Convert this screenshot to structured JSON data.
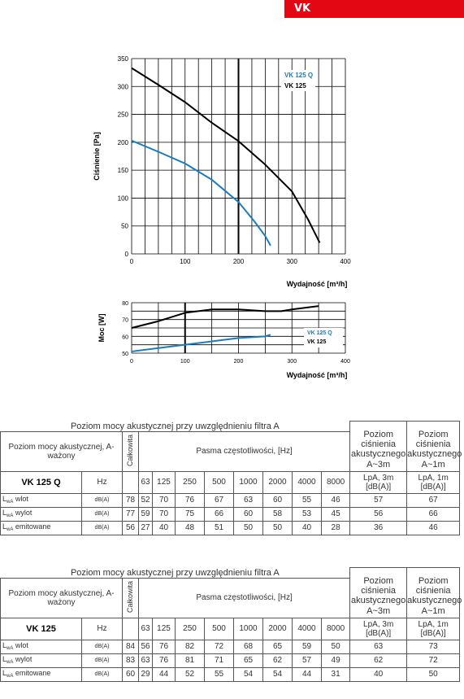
{
  "badge": "VK",
  "chart_data": [
    {
      "type": "line",
      "ylabel": "Ciśnienie [Pa]",
      "xlabel": "Wydajność [m³/h]",
      "xlim": [
        0,
        400
      ],
      "ylim": [
        0,
        350
      ],
      "xticks": [
        "0",
        "100",
        "200",
        "300",
        "400"
      ],
      "yticks": [
        "0",
        "50",
        "100",
        "150",
        "200",
        "250",
        "300",
        "350"
      ],
      "grid": true,
      "legend_position": "top-right",
      "series": [
        {
          "name": "VK 125 Q",
          "color": "#1a7cc0",
          "x": [
            0,
            50,
            100,
            150,
            200,
            230,
            250,
            260
          ],
          "y": [
            203,
            183,
            162,
            133,
            93,
            58,
            32,
            15
          ]
        },
        {
          "name": "VK 125",
          "color": "#000000",
          "x": [
            0,
            50,
            100,
            150,
            200,
            250,
            300,
            330,
            352
          ],
          "y": [
            333,
            303,
            272,
            235,
            202,
            160,
            112,
            62,
            20
          ]
        }
      ]
    },
    {
      "type": "line",
      "ylabel": "Moc [W]",
      "xlabel": "Wydajność [m³/h]",
      "xlim": [
        0,
        400
      ],
      "ylim": [
        50,
        80
      ],
      "xticks": [
        "0",
        "100",
        "200",
        "300",
        "400"
      ],
      "yticks": [
        "50",
        "60",
        "70",
        "80"
      ],
      "grid": true,
      "legend_position": "bottom-right",
      "series": [
        {
          "name": "VK 125 Q",
          "color": "#1a7cc0",
          "x": [
            0,
            50,
            100,
            150,
            200,
            250,
            260
          ],
          "y": [
            51,
            53,
            55,
            57,
            59,
            60,
            61
          ]
        },
        {
          "name": "VK 125",
          "color": "#000000",
          "x": [
            0,
            50,
            100,
            150,
            200,
            250,
            280,
            300,
            350
          ],
          "y": [
            65,
            69,
            74,
            76,
            76,
            75,
            75,
            76,
            78
          ]
        }
      ]
    }
  ],
  "freqs": [
    "63",
    "125",
    "250",
    "500",
    "1000",
    "2000",
    "4000",
    "8000"
  ],
  "tables": [
    {
      "caption": "Poziom mocy akustycznej przy uwzględnieniu filtra A",
      "label": "Poziom mocy akustycznej, A-ważony",
      "total": "Całkowita",
      "band": "Pasma częstotliwości, [Hz]",
      "hdr1": "Poziom ciśnienia akustycznego A~3m",
      "hdr2": "Poziom ciśnienia akustycznego A~1m",
      "model": "VK 125 Q",
      "hz": "Hz",
      "unit1": "LpA, 3m [dB(A)]",
      "unit2": "LpA, 1m [dB(A)]",
      "rows": [
        {
          "main": "L",
          "sub": "wA",
          "rest": " wlot",
          "unit": "dB(A)",
          "vals": [
            "78",
            "52",
            "70",
            "76",
            "67",
            "63",
            "60",
            "55",
            "46",
            "57",
            "67"
          ]
        },
        {
          "main": "L",
          "sub": "wA",
          "rest": " wylot",
          "unit": "dB(A)",
          "vals": [
            "77",
            "59",
            "70",
            "75",
            "66",
            "60",
            "58",
            "53",
            "45",
            "56",
            "66"
          ]
        },
        {
          "main": "L",
          "sub": "wA",
          "rest": " emitowane",
          "unit": "dB(A)",
          "vals": [
            "56",
            "27",
            "40",
            "48",
            "51",
            "50",
            "50",
            "40",
            "28",
            "36",
            "46"
          ]
        }
      ]
    },
    {
      "caption": "Poziom mocy akustycznej przy uwzględnieniu filtra A",
      "label": "Poziom mocy akustycznej, A-ważony",
      "total": "Całkowita",
      "band": "Pasma częstotliwości, [Hz]",
      "hdr1": "Poziom ciśnienia akustycznego A~3m",
      "hdr2": "Poziom ciśnienia akustycznego A~1m",
      "model": "VK 125",
      "hz": "Hz",
      "unit1": "LpA, 3m [dB(A)]",
      "unit2": "LpA, 1m [dB(A)]",
      "rows": [
        {
          "main": "L",
          "sub": "wA",
          "rest": " wlot",
          "unit": "dB(A)",
          "vals": [
            "84",
            "56",
            "76",
            "82",
            "72",
            "68",
            "65",
            "59",
            "50",
            "63",
            "73"
          ]
        },
        {
          "main": "L",
          "sub": "wA",
          "rest": " wylot",
          "unit": "dB(A)",
          "vals": [
            "83",
            "63",
            "76",
            "81",
            "71",
            "65",
            "62",
            "57",
            "49",
            "62",
            "72"
          ]
        },
        {
          "main": "L",
          "sub": "wA",
          "rest": " emitowane",
          "unit": "dB(A)",
          "vals": [
            "60",
            "29",
            "44",
            "52",
            "55",
            "54",
            "54",
            "44",
            "31",
            "40",
            "50"
          ]
        }
      ]
    }
  ]
}
